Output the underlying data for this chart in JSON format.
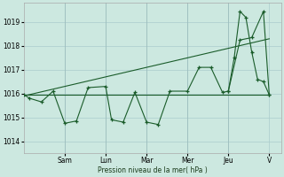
{
  "background_color": "#cce8e0",
  "grid_color": "#aacccc",
  "line_color": "#1a5c2a",
  "ylim": [
    1013.5,
    1019.8
  ],
  "xlim": [
    0,
    22
  ],
  "yticks": [
    1014,
    1015,
    1016,
    1017,
    1018,
    1019
  ],
  "ylabel": "Pression niveau de la mer( hPa )",
  "day_labels": [
    "Sam",
    "Lun",
    "Mar",
    "Mer",
    "Jeu",
    "V"
  ],
  "day_positions": [
    3.5,
    7.0,
    10.5,
    14.0,
    17.5,
    21.0
  ],
  "zigzag_x": [
    0,
    0.5,
    1.5,
    2.5,
    3.5,
    4.5,
    5.5,
    7.0,
    7.5,
    8.5,
    9.5,
    10.5,
    11.5,
    12.5,
    14.0,
    15.0,
    16.0,
    17.0,
    17.5,
    18.5,
    19.5,
    20.5,
    21.0
  ],
  "zigzag_y": [
    1015.95,
    1015.8,
    1015.65,
    1016.1,
    1014.75,
    1014.85,
    1016.25,
    1016.3,
    1014.9,
    1014.8,
    1016.05,
    1014.8,
    1014.7,
    1016.1,
    1016.1,
    1017.1,
    1017.1,
    1016.05,
    1016.1,
    1018.25,
    1018.35,
    1019.45,
    1015.95
  ],
  "flat_line_x": [
    0,
    21.0
  ],
  "flat_line_y": [
    1015.95,
    1015.95
  ],
  "trend_line_x": [
    0,
    21.0
  ],
  "trend_line_y": [
    1015.9,
    1018.3
  ],
  "peak_x": [
    17.5,
    18.0,
    18.5,
    19.0,
    19.5,
    20.0,
    20.5,
    21.0
  ],
  "peak_y": [
    1016.1,
    1017.5,
    1019.45,
    1019.2,
    1017.75,
    1016.6,
    1016.5,
    1015.95
  ],
  "marker_x": [
    0,
    0.5,
    1.5,
    2.5,
    3.5,
    4.5,
    5.5,
    7.0,
    7.5,
    8.5,
    9.5,
    10.5,
    11.5,
    12.5,
    14.0,
    15.0,
    16.0,
    17.0,
    17.5,
    18.5,
    19.5,
    20.5,
    21.0
  ],
  "marker_y": [
    1015.95,
    1015.8,
    1015.65,
    1016.1,
    1014.75,
    1014.85,
    1016.25,
    1016.3,
    1014.9,
    1014.8,
    1016.05,
    1014.8,
    1014.7,
    1016.1,
    1016.1,
    1017.1,
    1017.1,
    1016.05,
    1016.1,
    1018.25,
    1018.35,
    1019.45,
    1015.95
  ]
}
